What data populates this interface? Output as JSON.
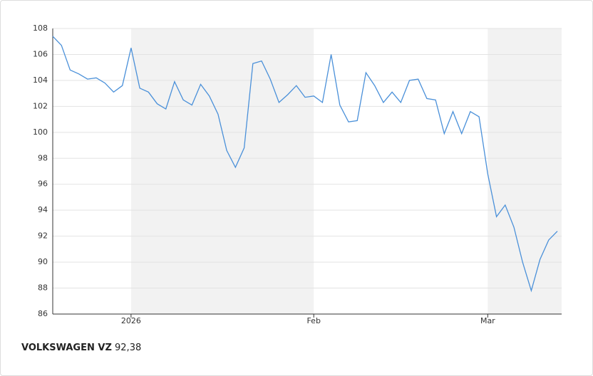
{
  "chart_data": {
    "type": "line",
    "categories": [
      null,
      null,
      null,
      null,
      null,
      null,
      null,
      null,
      null,
      "2026",
      null,
      null,
      null,
      null,
      null,
      null,
      null,
      null,
      null,
      null,
      null,
      null,
      null,
      null,
      null,
      null,
      null,
      null,
      null,
      null,
      "Feb",
      null,
      null,
      null,
      null,
      null,
      null,
      null,
      null,
      null,
      null,
      null,
      null,
      null,
      null,
      null,
      null,
      null,
      null,
      null,
      "Mar",
      null,
      null,
      null,
      null,
      null,
      null,
      null,
      null
    ],
    "series": [
      {
        "name": "VOLKSWAGEN VZ",
        "color": "#4a90d9",
        "values": [
          107.4,
          106.7,
          104.8,
          104.5,
          104.1,
          104.2,
          103.8,
          103.1,
          103.6,
          106.5,
          103.4,
          103.1,
          102.2,
          101.8,
          103.9,
          102.5,
          102.1,
          103.7,
          102.8,
          101.4,
          98.6,
          97.3,
          98.8,
          105.3,
          105.5,
          104.1,
          102.3,
          102.9,
          103.6,
          102.7,
          102.8,
          102.3,
          106.0,
          102.1,
          100.8,
          100.9,
          104.6,
          103.6,
          102.3,
          103.1,
          102.3,
          104.0,
          104.1,
          102.6,
          102.5,
          99.9,
          101.6,
          99.9,
          101.6,
          101.2,
          96.8,
          93.5,
          94.4,
          92.7,
          90.0,
          87.8,
          90.2,
          91.7,
          92.38
        ]
      }
    ],
    "last_price_label": "92,38",
    "ylim": [
      86,
      108
    ],
    "yticks": [
      86,
      88,
      90,
      92,
      94,
      96,
      98,
      100,
      102,
      104,
      106,
      108
    ],
    "grid": true
  }
}
